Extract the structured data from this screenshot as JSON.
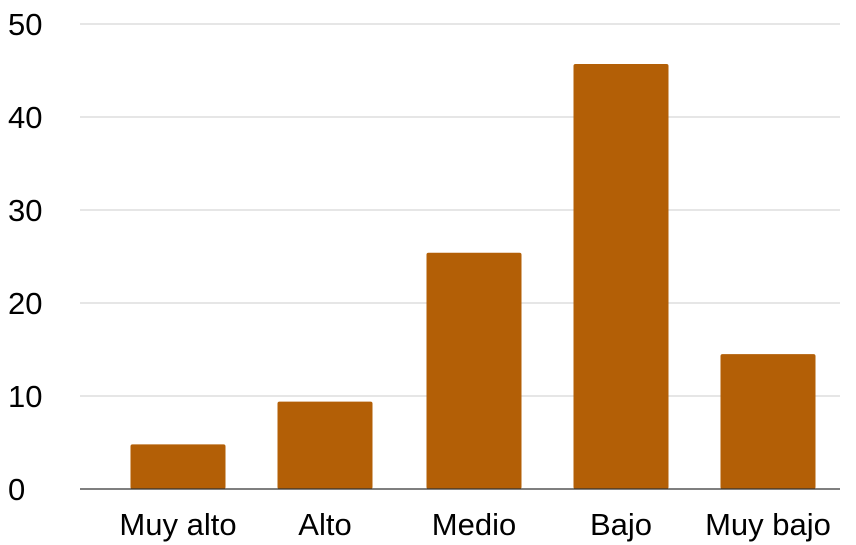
{
  "chart_data": {
    "type": "bar",
    "categories": [
      "Muy alto",
      "Alto",
      "Medio",
      "Bajo",
      "Muy bajo"
    ],
    "values": [
      4.8,
      9.4,
      25.4,
      45.7,
      14.5
    ],
    "ylim": [
      0,
      50
    ],
    "yticks": [
      0,
      10,
      20,
      30,
      40,
      50
    ],
    "grid": true,
    "legend": "none",
    "bar_color": "#b35f06",
    "grid_color": "#cccccc",
    "title": "",
    "xlabel": "",
    "ylabel": ""
  }
}
